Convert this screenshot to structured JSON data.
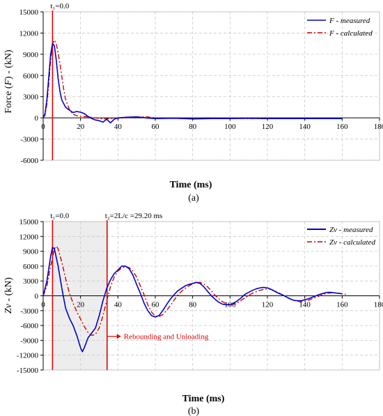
{
  "chart_data": [
    {
      "panel": "(a)",
      "type": "line",
      "xlabel": "Time (ms)",
      "ylabel": "Force (F) - (kN)",
      "ylabel_parts": [
        "Force (",
        "F",
        ") - (kN)"
      ],
      "xlim": [
        0,
        180
      ],
      "ylim": [
        -6000,
        15000
      ],
      "x_ticks": [
        0,
        20,
        40,
        60,
        80,
        100,
        120,
        140,
        160,
        180
      ],
      "y_ticks": [
        -6000,
        -3000,
        0,
        3000,
        6000,
        9000,
        12000,
        15000
      ],
      "y_tick_labels": [
        "-6000",
        "-3000",
        "0",
        "3000",
        "6000",
        "9000",
        "12000",
        "15000"
      ],
      "grid": true,
      "legend_position": "top-right",
      "marker_line": {
        "x": 5,
        "label": "t₁=0.0",
        "color": "#e00000"
      },
      "series": [
        {
          "name": "F - measured",
          "color": "#0000cc",
          "style": "solid",
          "x": [
            0,
            1,
            2,
            3,
            4,
            5,
            6,
            7,
            8,
            9,
            10,
            12,
            14,
            16,
            18,
            20,
            22,
            24,
            26,
            28,
            30,
            32,
            34,
            36,
            38,
            40,
            45,
            50,
            55,
            60,
            70,
            80,
            90,
            100,
            110,
            120,
            130,
            140,
            150,
            160
          ],
          "y": [
            0,
            600,
            2600,
            5800,
            9000,
            10500,
            10200,
            8200,
            5600,
            3700,
            2500,
            1500,
            1100,
            750,
            900,
            800,
            600,
            200,
            -100,
            -300,
            -400,
            -600,
            -200,
            -700,
            -200,
            0,
            100,
            150,
            0,
            -100,
            -50,
            -150,
            -100,
            -100,
            -50,
            -100,
            -100,
            -100,
            -100,
            -100
          ]
        },
        {
          "name": "F - calculated",
          "color": "#cc0000",
          "style": "dashdot",
          "x": [
            0,
            1,
            2,
            3,
            4,
            5,
            6,
            7,
            8,
            9,
            10,
            11,
            12,
            14,
            16,
            18,
            20,
            24,
            28,
            32,
            36,
            40,
            50,
            55,
            60,
            70,
            80,
            90,
            100,
            110,
            120,
            130,
            140,
            160
          ],
          "y": [
            0,
            400,
            2000,
            4800,
            8200,
            10500,
            11000,
            10500,
            9200,
            7600,
            5800,
            4000,
            2600,
            1200,
            500,
            300,
            200,
            150,
            0,
            -150,
            -100,
            -50,
            100,
            150,
            0,
            -50,
            -100,
            -100,
            -50,
            -100,
            -100,
            -100,
            -100,
            -100
          ]
        }
      ]
    },
    {
      "panel": "(b)",
      "type": "line",
      "xlabel": "Time (ms)",
      "ylabel": "Zv - (kN)",
      "ylabel_parts": [
        "Zv",
        " - (kN)"
      ],
      "xlim": [
        0,
        180
      ],
      "ylim": [
        -15000,
        15000
      ],
      "x_ticks": [
        0,
        20,
        40,
        60,
        80,
        100,
        120,
        140,
        160,
        180
      ],
      "y_ticks": [
        -15000,
        -12000,
        -9000,
        -6000,
        -3000,
        0,
        3000,
        6000,
        9000,
        12000,
        15000
      ],
      "y_tick_labels": [
        "-15000",
        "-12000",
        "-9000",
        "-6000",
        "-3000",
        "0",
        "3000",
        "6000",
        "9000",
        "12000",
        "15000"
      ],
      "grid": true,
      "legend_position": "top-right",
      "marker_lines": [
        {
          "x": 5,
          "label": "t₁=0.0",
          "color": "#e00000"
        },
        {
          "x": 34.2,
          "label": "t₂=2L/c =29.20 ms",
          "color": "#e00000"
        }
      ],
      "shaded_region": [
        5,
        34.2
      ],
      "annotation": {
        "text": "Rebounding and Unloading",
        "color": "#e00000",
        "arrow_y": -8200
      },
      "series": [
        {
          "name": "Zv - measured",
          "color": "#0000cc",
          "style": "solid",
          "x": [
            0,
            2,
            4,
            5,
            6,
            8,
            10,
            12,
            14,
            16,
            18,
            20,
            21,
            22,
            24,
            26,
            28,
            30,
            32,
            34,
            36,
            38,
            40,
            42,
            44,
            46,
            48,
            50,
            52,
            54,
            56,
            58,
            60,
            62,
            64,
            66,
            68,
            70,
            72,
            74,
            76,
            78,
            80,
            82,
            84,
            86,
            88,
            90,
            92,
            94,
            96,
            98,
            100,
            102,
            104,
            106,
            108,
            110,
            112,
            114,
            116,
            118,
            120,
            122,
            124,
            126,
            128,
            130,
            132,
            134,
            136,
            138,
            140,
            142,
            144,
            146,
            148,
            150,
            152,
            154,
            156,
            158,
            160
          ],
          "y": [
            0,
            3000,
            8000,
            9800,
            9500,
            6000,
            1500,
            -2500,
            -4500,
            -6000,
            -8000,
            -10500,
            -11300,
            -10500,
            -8500,
            -7500,
            -6500,
            -4000,
            -1000,
            1500,
            3200,
            4500,
            5200,
            6000,
            6000,
            5500,
            4200,
            2300,
            500,
            -1500,
            -3000,
            -4000,
            -4300,
            -4000,
            -3000,
            -1800,
            -700,
            200,
            1000,
            1500,
            2000,
            2300,
            2500,
            2700,
            2500,
            1800,
            900,
            0,
            -700,
            -1300,
            -1700,
            -1800,
            -1800,
            -1500,
            -1000,
            -400,
            300,
            700,
            1100,
            1400,
            1600,
            1700,
            1600,
            1300,
            900,
            500,
            200,
            -200,
            -600,
            -900,
            -1000,
            -1000,
            -800,
            -600,
            -300,
            0,
            300,
            500,
            700,
            700,
            600,
            500,
            400
          ]
        },
        {
          "name": "Zv - calculated",
          "color": "#cc0000",
          "style": "dashdot",
          "x": [
            0,
            2,
            4,
            6,
            7,
            8,
            10,
            12,
            14,
            16,
            18,
            20,
            22,
            24,
            26,
            28,
            30,
            32,
            34,
            36,
            38,
            40,
            42,
            44,
            46,
            48,
            50,
            52,
            54,
            56,
            58,
            60,
            62,
            64,
            66,
            68,
            70,
            72,
            74,
            76,
            78,
            80,
            82,
            84,
            86,
            88,
            90,
            92,
            94,
            96,
            98,
            100,
            102,
            104,
            106,
            108,
            110,
            112,
            114,
            116,
            118,
            120,
            122,
            124,
            126,
            128,
            130,
            132,
            134,
            136,
            138,
            140,
            142,
            144,
            146,
            148,
            150,
            152,
            154,
            156,
            158,
            160,
            162
          ],
          "y": [
            0,
            2000,
            6000,
            9500,
            10000,
            9500,
            6800,
            3500,
            600,
            -1500,
            -3200,
            -4700,
            -6200,
            -7400,
            -8000,
            -7800,
            -6500,
            -4000,
            -1000,
            1800,
            3800,
            5000,
            5600,
            5900,
            5700,
            5000,
            3800,
            2000,
            200,
            -1800,
            -3300,
            -4100,
            -4200,
            -3800,
            -3000,
            -2000,
            -900,
            100,
            900,
            1500,
            2000,
            2400,
            2700,
            2700,
            2400,
            1800,
            1000,
            100,
            -600,
            -1200,
            -1600,
            -1800,
            -1700,
            -1400,
            -900,
            -400,
            100,
            500,
            800,
            1100,
            1300,
            1400,
            1300,
            1000,
            600,
            200,
            -200,
            -600,
            -900,
            -1100,
            -1200,
            -1100,
            -900,
            -600,
            -300,
            0,
            300,
            500,
            600,
            600,
            500,
            400,
            300
          ]
        }
      ]
    }
  ]
}
